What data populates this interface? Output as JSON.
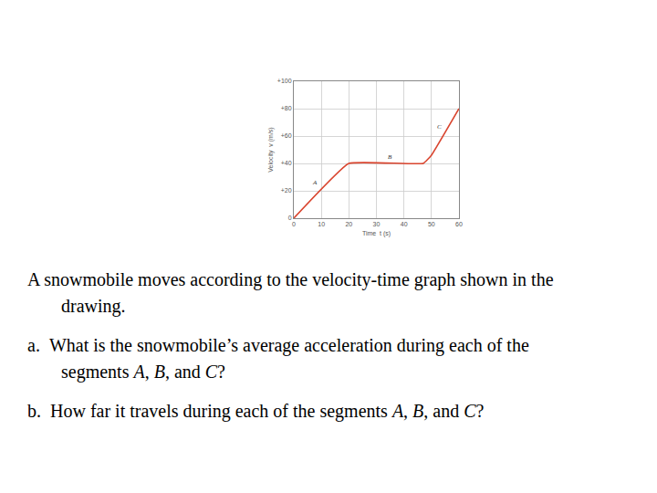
{
  "chart_data": {
    "type": "line",
    "x": [
      0,
      20,
      47,
      50,
      60
    ],
    "values": [
      0,
      40,
      40,
      46,
      80
    ],
    "color": "#d9452f",
    "xlabel": "Time  t (s)",
    "ylabel": "Velocity  v (m/s)",
    "xlim": [
      0,
      60
    ],
    "ylim": [
      0,
      100
    ],
    "xticks": [
      0,
      10,
      20,
      30,
      40,
      50,
      60
    ],
    "yticks": [
      0,
      {
        "value": 20,
        "label": "+20"
      },
      {
        "value": 40,
        "label": "+40"
      },
      {
        "value": 60,
        "label": "+60"
      },
      {
        "value": 80,
        "label": "+80"
      },
      {
        "value": 100,
        "label": "+100"
      }
    ],
    "grid": true,
    "annotations": [
      {
        "text": "A",
        "x": 7.5,
        "y": 26
      },
      {
        "text": "B",
        "x": 35,
        "y": 45
      },
      {
        "text": "C",
        "x": 53,
        "y": 67
      }
    ]
  },
  "document": {
    "paragraphs": [
      [
        "A snowmobile moves according to the velocity-time graph shown in the drawing."
      ],
      [
        "a.  What is the snowmobile’s average acceleration during each of the segments ",
        {
          "italic": "A"
        },
        ", ",
        {
          "italic": "B"
        },
        ", and ",
        {
          "italic": "C"
        },
        "?"
      ],
      [
        "b.  How far it travels during each of the segments ",
        {
          "italic": "A"
        },
        ", ",
        {
          "italic": "B"
        },
        ", and ",
        {
          "italic": "C"
        },
        "?"
      ]
    ]
  }
}
